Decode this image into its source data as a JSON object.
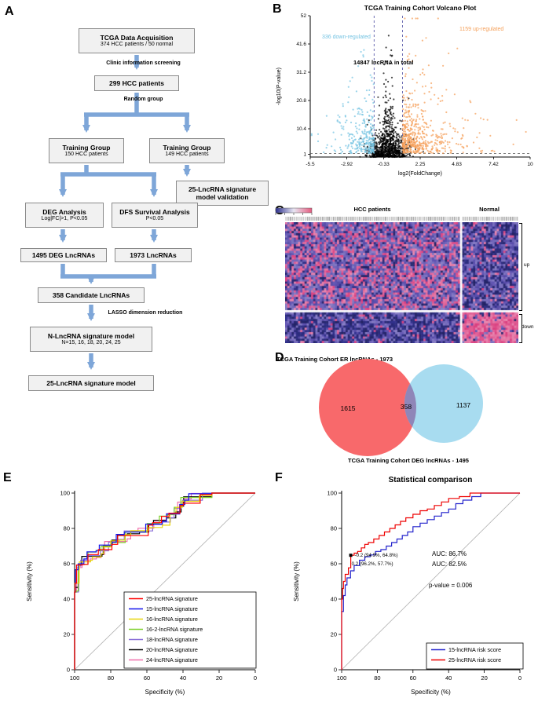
{
  "figure": {
    "panel_labels": {
      "a": "A",
      "b": "B",
      "c": "C",
      "d": "D",
      "e": "E",
      "f": "F"
    }
  },
  "flowchart": {
    "arrow_color": "#7EA6D8",
    "boxes": {
      "tcga": {
        "title": "TCGA Data Acquisition",
        "subtitle": "374 HCC patients / 50 normal"
      },
      "screened": {
        "title": "299 HCC patients"
      },
      "training150": {
        "title": "Training Group",
        "subtitle": "150 HCC patients"
      },
      "training149": {
        "title": "Training Group",
        "subtitle": "149 HCC patients"
      },
      "validation": {
        "title": "25-LncRNA signature model validation"
      },
      "deg": {
        "title": "DEG Analysis",
        "subtitle": "Log|FC|>1, P<0.05"
      },
      "dfs": {
        "title": "DFS Survival Analysis",
        "subtitle": "P<0.05"
      },
      "deg1495": {
        "title": "1495 DEG LncRNAs"
      },
      "lnc1973": {
        "title": "1973 LncRNAs"
      },
      "candidate": {
        "title": "358 Candidate LncRNAs"
      },
      "nmodel": {
        "title": "N-LncRNA signature model",
        "subtitle": "N=15, 16, 18, 20, 24, 25"
      },
      "final": {
        "title": "25-LncRNA signature model"
      }
    },
    "edge_labels": {
      "screening": "Clinic information screening",
      "random": "Random group",
      "lasso": "LASSO dimension reduction"
    }
  },
  "chart_data": [
    {
      "id": "volcano",
      "type": "scatter",
      "panel": "B",
      "title": "TCGA Training Cohort Volcano Plot",
      "xlabel": "log2(FoldChange)",
      "ylabel": "-log10(P-value)",
      "xlim": [
        -5.5,
        10
      ],
      "ylim": [
        0,
        52
      ],
      "xticks": [
        -5.5,
        -2.92,
        -0.33,
        2.25,
        4.83,
        7.42,
        10
      ],
      "yticks": [
        1,
        10.4,
        20.8,
        31.2,
        41.6,
        52
      ],
      "cutoffs": {
        "x": [
          -1,
          1
        ],
        "y": 1.3
      },
      "groups": [
        {
          "name": "down-regulated",
          "count": 336,
          "color": "#74C3E2",
          "label": "336 down-regulated"
        },
        {
          "name": "total",
          "count": 14847,
          "color": "#000000",
          "label": "14847 lncRNA in total"
        },
        {
          "name": "up-regulated",
          "count": 1159,
          "color": "#F5A05A",
          "label": "1159 up-regulated"
        }
      ]
    },
    {
      "id": "heatmap",
      "type": "heatmap",
      "panel": "C",
      "col_groups": [
        {
          "label": "HCC patients",
          "fraction": 0.75
        },
        {
          "label": "Normal",
          "fraction": 0.25
        }
      ],
      "row_groups": [
        {
          "label": "up",
          "fraction": 0.73
        },
        {
          "label": "down",
          "fraction": 0.27
        }
      ],
      "palette": {
        "low": "#2B2F8E",
        "mid": "#6A61B5",
        "high": "#EE6B9A"
      }
    },
    {
      "id": "venn",
      "type": "venn",
      "panel": "D",
      "title": "TCGA Training Cohort ER lncRNAs - 1973",
      "bottom_label": "TCGA Training Cohort DEG lncRNAs - 1495",
      "left_only": 1615,
      "overlap": 358,
      "right_only": 1137,
      "left_color": "#F8696B",
      "right_color": "#A8DCF0",
      "overlap_color": "#8F86B8"
    },
    {
      "id": "roc_signatures",
      "type": "line",
      "panel": "E",
      "xlabel": "Specificity (%)",
      "ylabel": "Sensitivity (%)",
      "xticks": [
        100,
        80,
        60,
        40,
        20,
        0
      ],
      "yticks": [
        0,
        20,
        40,
        60,
        80,
        100
      ],
      "series": [
        {
          "name": "25-lncRNA signature",
          "color": "#FF0000"
        },
        {
          "name": "15-lncRNA signature",
          "color": "#1414EE"
        },
        {
          "name": "16-lncRNA signature",
          "color": "#E8D50A"
        },
        {
          "name": "16-2-lncRNA signature",
          "color": "#7FD02B"
        },
        {
          "name": "18-lncRNA signature",
          "color": "#8A6FD8"
        },
        {
          "name": "20-lncRNA signature",
          "color": "#000000"
        },
        {
          "name": "24-lncRNA signature",
          "color": "#F06EAA"
        }
      ],
      "base_points": [
        [
          100,
          0
        ],
        [
          100,
          44
        ],
        [
          99,
          47
        ],
        [
          98.5,
          57
        ],
        [
          97,
          60
        ],
        [
          95,
          62
        ],
        [
          92,
          64
        ],
        [
          89,
          66
        ],
        [
          86,
          68
        ],
        [
          83,
          70
        ],
        [
          80,
          72
        ],
        [
          76,
          74
        ],
        [
          72,
          76
        ],
        [
          68,
          77
        ],
        [
          64,
          78
        ],
        [
          60,
          80
        ],
        [
          56,
          82
        ],
        [
          52,
          84
        ],
        [
          48,
          86
        ],
        [
          45,
          89
        ],
        [
          42,
          93
        ],
        [
          40,
          96
        ],
        [
          36,
          97
        ],
        [
          30,
          98
        ],
        [
          24,
          100
        ],
        [
          0,
          100
        ]
      ]
    },
    {
      "id": "roc_comparison",
      "type": "line",
      "panel": "F",
      "title": "Statistical comparison",
      "xlabel": "Specificity (%)",
      "ylabel": "Sensitivity (%)",
      "xticks": [
        100,
        80,
        60,
        40,
        20,
        0
      ],
      "yticks": [
        0,
        20,
        40,
        60,
        80,
        100
      ],
      "series": [
        {
          "name": "15-lncRNA risk score",
          "color": "#2222CC",
          "points": [
            [
              100,
              0
            ],
            [
              100,
              33
            ],
            [
              99,
              42
            ],
            [
              98,
              48
            ],
            [
              97,
              52
            ],
            [
              95,
              56
            ],
            [
              93,
              59
            ],
            [
              90,
              62
            ],
            [
              87,
              64
            ],
            [
              84,
              65
            ],
            [
              81,
              67
            ],
            [
              78,
              68
            ],
            [
              75,
              70
            ],
            [
              72,
              72
            ],
            [
              69,
              74
            ],
            [
              66,
              76
            ],
            [
              63,
              78
            ],
            [
              60,
              81
            ],
            [
              56,
              83
            ],
            [
              52,
              85
            ],
            [
              48,
              87
            ],
            [
              44,
              89
            ],
            [
              40,
              91
            ],
            [
              36,
              94
            ],
            [
              32,
              96
            ],
            [
              27,
              98
            ],
            [
              22,
              100
            ],
            [
              0,
              100
            ]
          ]
        },
        {
          "name": "25-lncRNA risk score",
          "color": "#EE0000",
          "points": [
            [
              100,
              0
            ],
            [
              100,
              40
            ],
            [
              99.5,
              46
            ],
            [
              99,
              50
            ],
            [
              98,
              54
            ],
            [
              96.2,
              57.7
            ],
            [
              94.9,
              64.8
            ],
            [
              93,
              66
            ],
            [
              91,
              67
            ],
            [
              89,
              69
            ],
            [
              87,
              71
            ],
            [
              85,
              72
            ],
            [
              82,
              74
            ],
            [
              79,
              76
            ],
            [
              76,
              78
            ],
            [
              73,
              80
            ],
            [
              70,
              82
            ],
            [
              67,
              84
            ],
            [
              64,
              86
            ],
            [
              60,
              88
            ],
            [
              56,
              90
            ],
            [
              52,
              91
            ],
            [
              48,
              93
            ],
            [
              44,
              95
            ],
            [
              40,
              97
            ],
            [
              34,
              98
            ],
            [
              28,
              100
            ],
            [
              0,
              100
            ]
          ]
        }
      ],
      "annotations": [
        {
          "text": "-0.2 (94.9%, 64.8%)",
          "color": "#000000",
          "marker_at": [
            94.9,
            64.8
          ]
        },
        {
          "text": "0.2 (96.2%, 57.7%)",
          "color": "#000000"
        },
        {
          "text": "AUC: 86.7%",
          "color": "#EE0000"
        },
        {
          "text": "AUC: 82.5%",
          "color": "#4A3AD8"
        },
        {
          "text": "p-value = 0.006",
          "color": "#000000"
        }
      ]
    }
  ]
}
